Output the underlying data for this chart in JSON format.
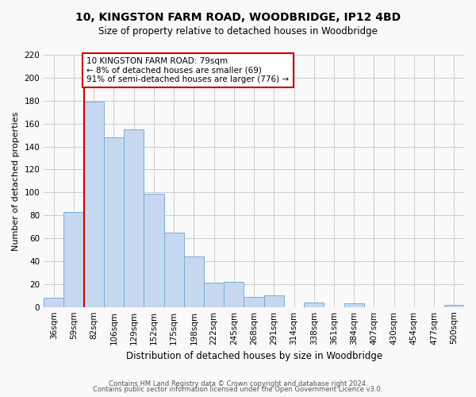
{
  "title": "10, KINGSTON FARM ROAD, WOODBRIDGE, IP12 4BD",
  "subtitle": "Size of property relative to detached houses in Woodbridge",
  "xlabel": "Distribution of detached houses by size in Woodbridge",
  "ylabel": "Number of detached properties",
  "bar_labels": [
    "36sqm",
    "59sqm",
    "82sqm",
    "106sqm",
    "129sqm",
    "152sqm",
    "175sqm",
    "198sqm",
    "222sqm",
    "245sqm",
    "268sqm",
    "291sqm",
    "314sqm",
    "338sqm",
    "361sqm",
    "384sqm",
    "407sqm",
    "430sqm",
    "454sqm",
    "477sqm",
    "500sqm"
  ],
  "bar_values": [
    8,
    83,
    179,
    148,
    155,
    99,
    65,
    44,
    21,
    22,
    9,
    10,
    0,
    4,
    0,
    3,
    0,
    0,
    0,
    0,
    2
  ],
  "bar_color": "#c5d8f0",
  "bar_edge_color": "#7aadd4",
  "ref_line_bar_index": 2,
  "ref_line_color": "#cc0000",
  "annotation_text": "10 KINGSTON FARM ROAD: 79sqm\n← 8% of detached houses are smaller (69)\n91% of semi-detached houses are larger (776) →",
  "annotation_box_color": "white",
  "annotation_box_edge_color": "#cc0000",
  "ylim": [
    0,
    220
  ],
  "yticks": [
    0,
    20,
    40,
    60,
    80,
    100,
    120,
    140,
    160,
    180,
    200,
    220
  ],
  "footer_line1": "Contains HM Land Registry data © Crown copyright and database right 2024.",
  "footer_line2": "Contains public sector information licensed under the Open Government Licence v3.0.",
  "bg_color": "#f9f9f9",
  "grid_color": "#cccccc",
  "title_fontsize": 10,
  "subtitle_fontsize": 8.5,
  "ylabel_fontsize": 8,
  "xlabel_fontsize": 8.5,
  "tick_fontsize": 7.5,
  "annot_fontsize": 7.5,
  "footer_fontsize": 6
}
